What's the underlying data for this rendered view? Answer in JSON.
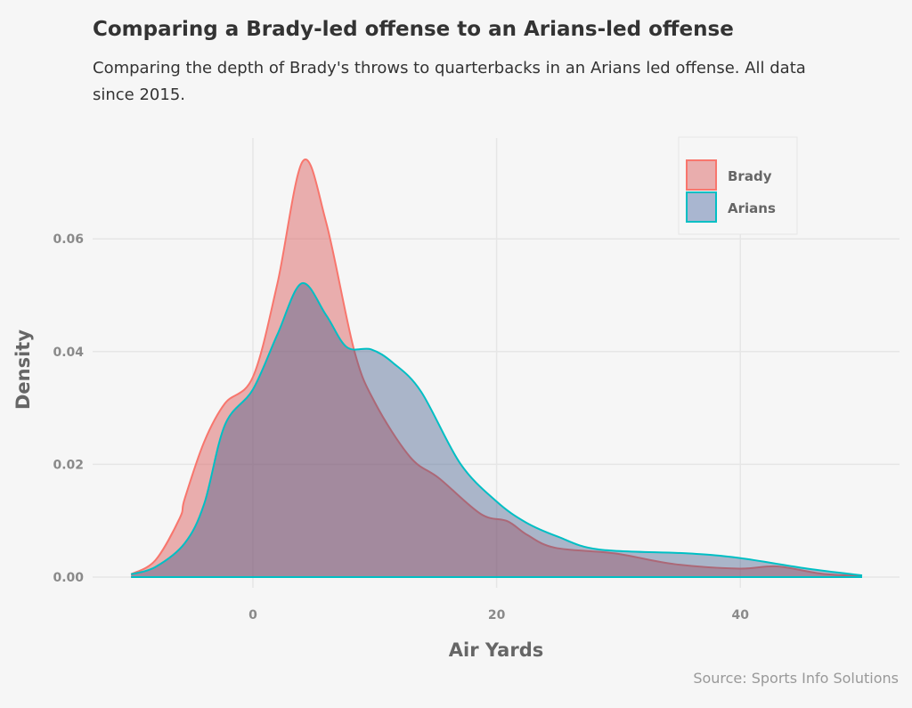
{
  "chart_data": {
    "type": "area",
    "title": "Comparing a Brady-led offense to an Arians-led offense",
    "subtitle": "Comparing the depth of Brady's throws to quarterbacks in an Arians led offense. All data since 2015.",
    "xlabel": "Air Yards",
    "ylabel": "Density",
    "caption": "Source: Sports Info Solutions",
    "xlim": [
      -10,
      50
    ],
    "ylim": [
      0,
      0.074
    ],
    "xticks": [
      0,
      20,
      40
    ],
    "yticks": [
      0.0,
      0.02,
      0.04,
      0.06
    ],
    "ytick_labels": [
      "0.00",
      "0.02",
      "0.04",
      "0.06"
    ],
    "grid": true,
    "legend_position": "top-right",
    "series": [
      {
        "name": "Brady",
        "color": "#F8766D",
        "x": [
          -10,
          -8,
          -6,
          -5.6,
          -4,
          -2.3,
          0,
          2,
          4.1,
          6,
          8.3,
          10,
          12.9,
          15.3,
          18.7,
          20.9,
          22.5,
          24.8,
          29.7,
          34.6,
          39.9,
          43,
          46.7,
          50
        ],
        "y": [
          0.0005,
          0.003,
          0.0105,
          0.0139,
          0.024,
          0.0308,
          0.0355,
          0.052,
          0.0738,
          0.063,
          0.0403,
          0.031,
          0.0213,
          0.0175,
          0.0112,
          0.0099,
          0.0075,
          0.0052,
          0.0042,
          0.0023,
          0.0015,
          0.0019,
          0.0006,
          0.0002
        ]
      },
      {
        "name": "Arians",
        "color": "#00BFC4",
        "x": [
          -10,
          -8,
          -5.6,
          -4,
          -2.3,
          0,
          2,
          4.0,
          6,
          7.7,
          9.7,
          11.5,
          13.8,
          17,
          20,
          22.4,
          25,
          28.4,
          35.7,
          39.9,
          45.5,
          50
        ],
        "y": [
          0.0005,
          0.0018,
          0.006,
          0.013,
          0.027,
          0.0333,
          0.043,
          0.0521,
          0.0465,
          0.0408,
          0.0404,
          0.038,
          0.0329,
          0.0202,
          0.0134,
          0.0097,
          0.0072,
          0.0049,
          0.0042,
          0.0034,
          0.0015,
          0.0003
        ]
      }
    ]
  }
}
